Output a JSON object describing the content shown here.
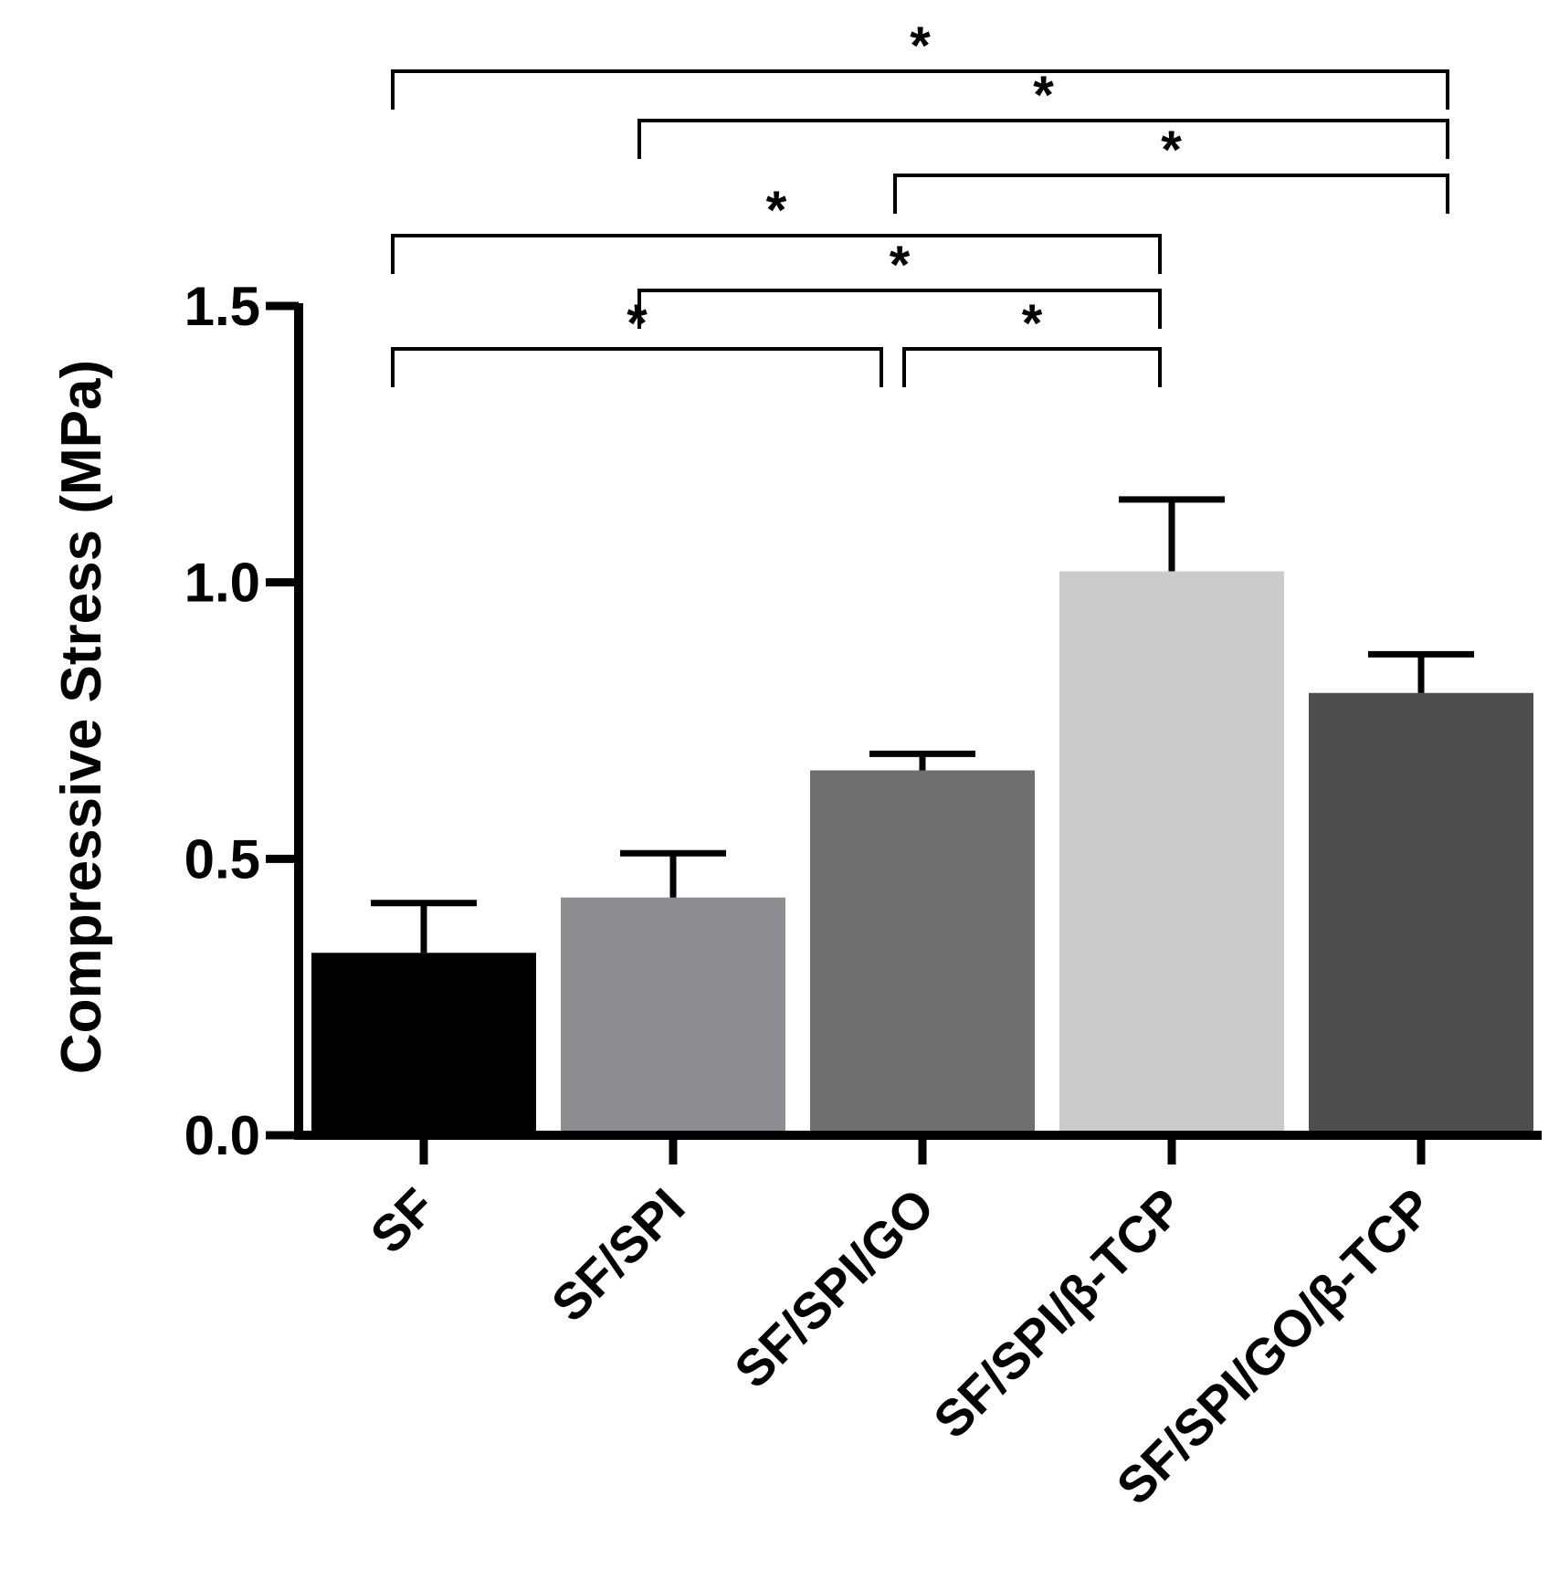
{
  "chart_data": {
    "type": "bar",
    "title": "",
    "xlabel": "",
    "ylabel": "Compressive Stress (MPa)",
    "ylim": [
      0,
      1.5
    ],
    "yticks": [
      0.0,
      0.5,
      1.0,
      1.5
    ],
    "ytick_labels": [
      "0.0",
      "0.5",
      "1.0",
      "1.5"
    ],
    "grid": false,
    "categories": [
      "SF",
      "SF/SPI",
      "SF/SPI/GO",
      "SF/SPI/β-TCP",
      "SF/SPI/GO/β-TCP"
    ],
    "values": [
      0.33,
      0.43,
      0.66,
      1.02,
      0.8
    ],
    "errors": [
      0.09,
      0.08,
      0.03,
      0.13,
      0.07
    ],
    "colors": [
      "#000000",
      "#8e8e92",
      "#6f6f6f",
      "#cbcbcb",
      "#4d4d4d"
    ],
    "significance": [
      {
        "from": 0,
        "to": 2,
        "label": "*"
      },
      {
        "from": 2,
        "to": 3,
        "label": "*"
      },
      {
        "from": 1,
        "to": 3,
        "label": "*"
      },
      {
        "from": 0,
        "to": 3,
        "label": "*"
      },
      {
        "from": 2,
        "to": 4,
        "label": "*"
      },
      {
        "from": 1,
        "to": 4,
        "label": "*"
      },
      {
        "from": 0,
        "to": 4,
        "label": "*"
      }
    ]
  }
}
